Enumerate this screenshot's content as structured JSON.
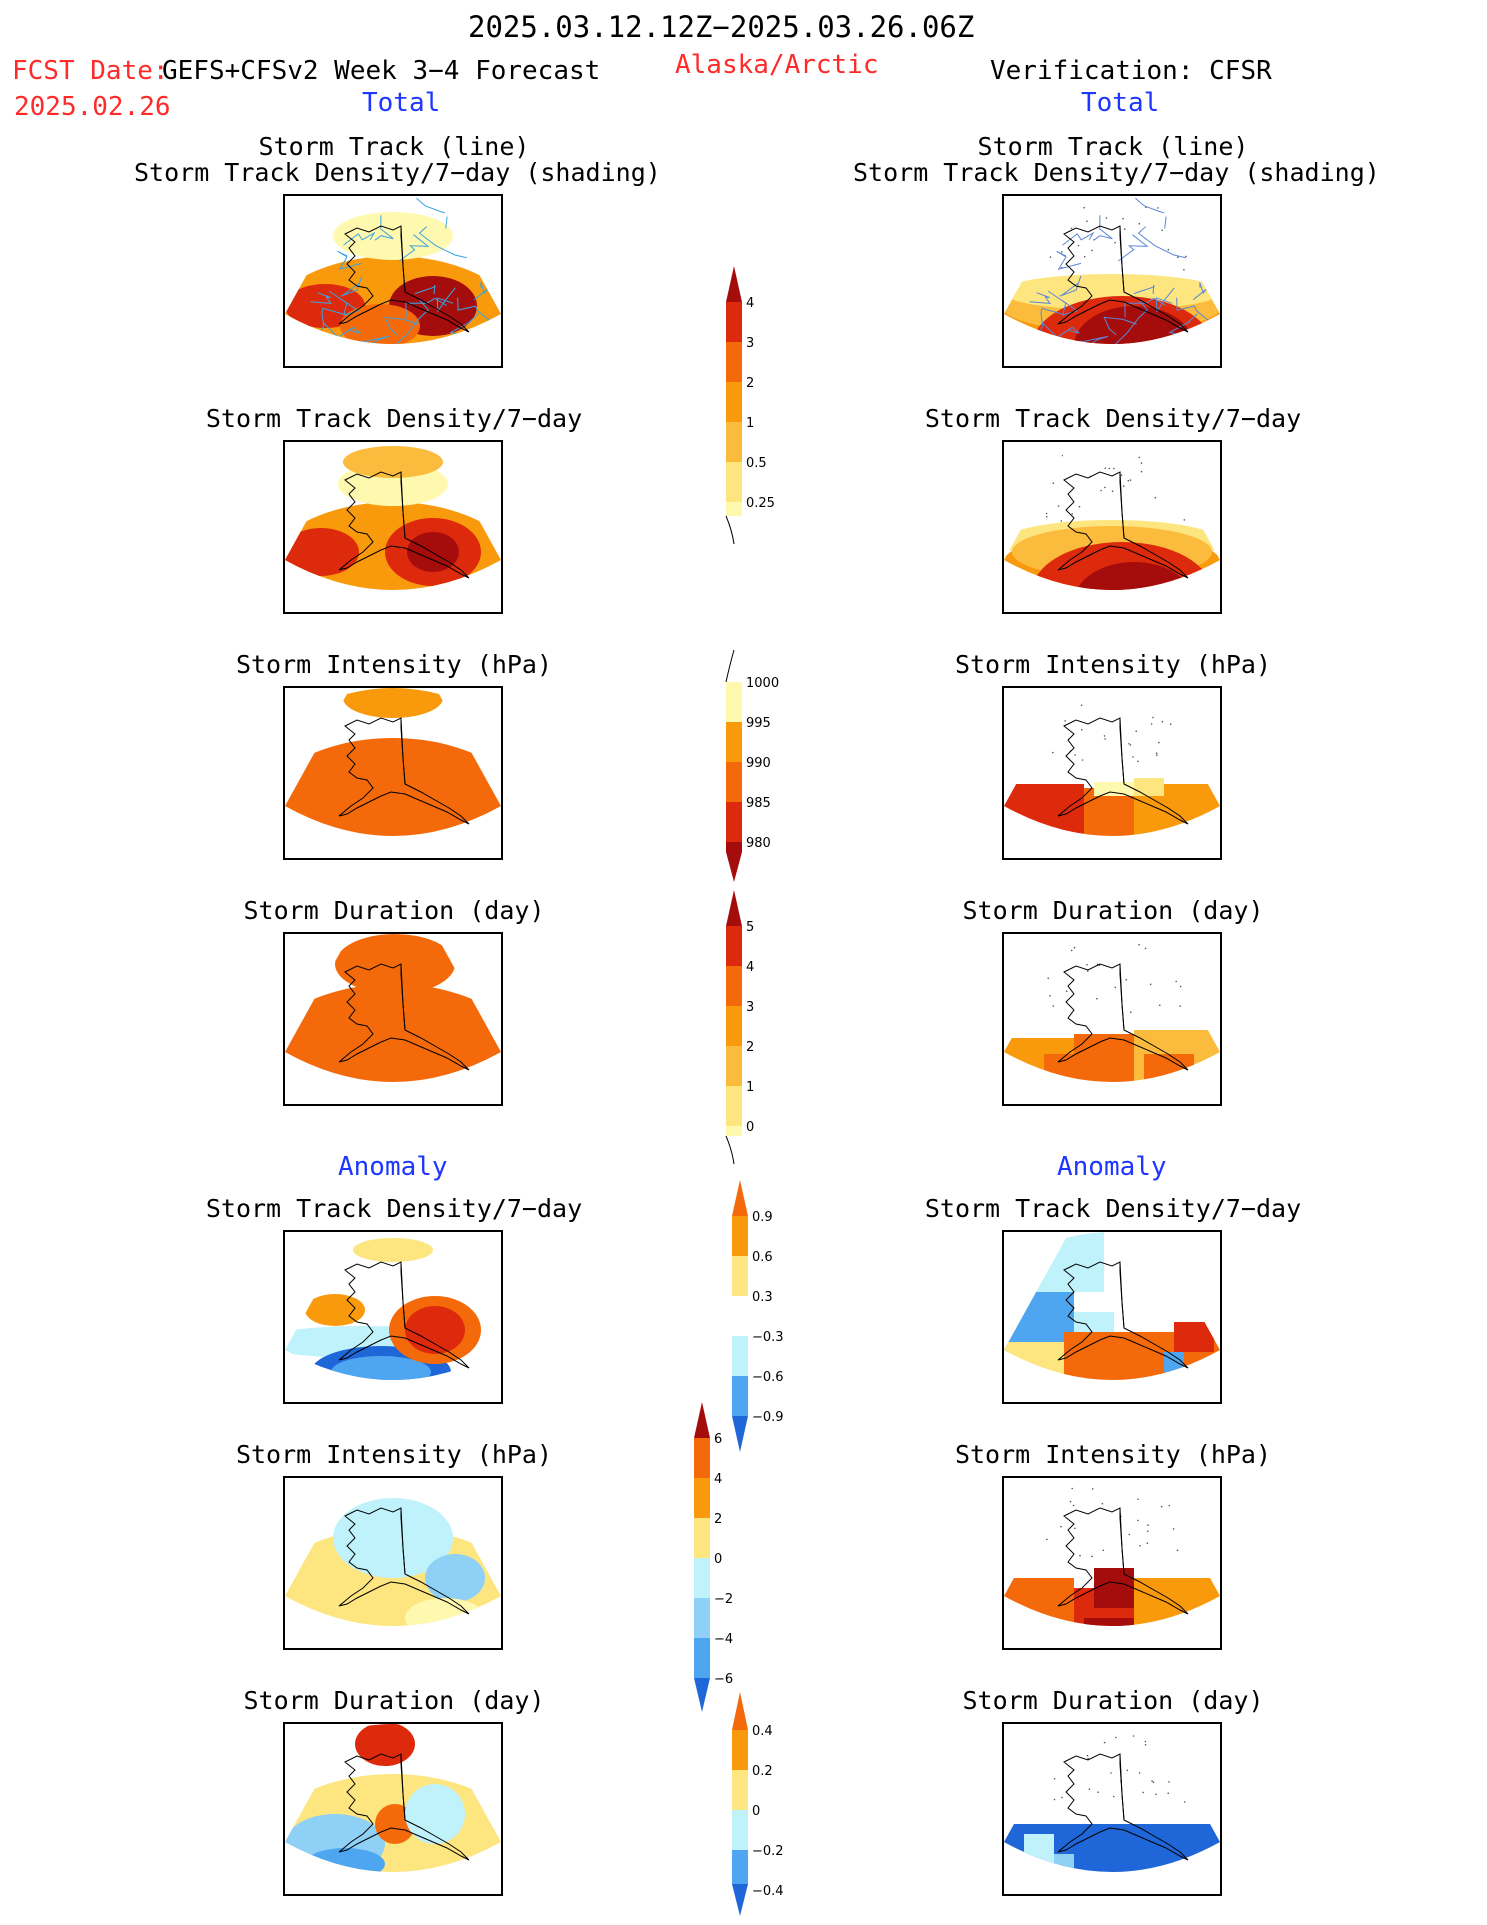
{
  "header": {
    "period": "2025.03.12.12Z−2025.03.26.06Z",
    "fcst_label": "FCST Date:",
    "model": "GEFS+CFSv2 Week 3−4 Forecast",
    "fcst_date": "2025.02.26",
    "region": "Alaska/Arctic",
    "verification": "Verification: CFSR"
  },
  "sections": {
    "total_left": "Total",
    "total_right": "Total",
    "anomaly_left": "Anomaly",
    "anomaly_right": "Anomaly"
  },
  "panel_titles": {
    "track_line": "Storm Track (line)",
    "track_shading": "Storm Track Density/7−day (shading)",
    "density": "Storm Track Density/7−day",
    "intensity": "Storm Intensity (hPa)",
    "duration": "Storm Duration (day)"
  },
  "colorbars": {
    "density_total": [
      "4",
      "3",
      "2",
      "1",
      "0.5",
      "0.25"
    ],
    "intensity_total": [
      "1000",
      "995",
      "990",
      "985",
      "980"
    ],
    "duration_total": [
      "5",
      "4",
      "3",
      "2",
      "1",
      "0"
    ],
    "density_anom": [
      "0.9",
      "0.6",
      "0.3",
      "−0.3",
      "−0.6",
      "−0.9"
    ],
    "intensity_anom": [
      "6",
      "4",
      "2",
      "0",
      "−2",
      "−4",
      "−6"
    ],
    "duration_anom": [
      "0.4",
      "0.2",
      "0",
      "−0.2",
      "−0.4"
    ]
  },
  "colors": {
    "warm": [
      "#fff9b0",
      "#fde580",
      "#fbbb3c",
      "#f99a0c",
      "#f46a0a",
      "#de2a0c",
      "#a50d0d"
    ],
    "cool": [
      "#bff2fb",
      "#8fd0f7",
      "#4fa6f0",
      "#1f66d8"
    ]
  }
}
